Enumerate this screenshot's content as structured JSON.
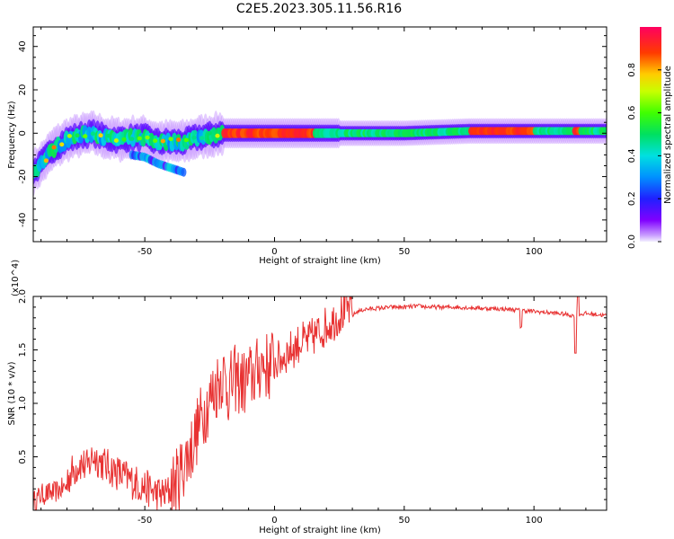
{
  "title": "C2E5.2023.305.11.56.R16",
  "chart_data": [
    {
      "type": "heatmap",
      "xlabel": "Height of straight line (km)",
      "ylabel": "Frequency (Hz)",
      "xlim": [
        -93,
        128
      ],
      "ylim": [
        -50,
        49
      ],
      "xticks": [
        -50,
        0,
        50,
        100
      ],
      "yticks": [
        -40,
        -20,
        0,
        20,
        40
      ],
      "colorbar": {
        "label": "Normalized spectral amplitude",
        "range": [
          0,
          1
        ],
        "ticks": [
          0.0,
          0.2,
          0.4,
          0.6,
          0.8
        ],
        "colormap": "rainbow"
      },
      "band_center_hz": [
        [
          -93,
          -18
        ],
        [
          -90,
          -14
        ],
        [
          -85,
          -7
        ],
        [
          -80,
          -3
        ],
        [
          -75,
          -1
        ],
        [
          -70,
          0
        ],
        [
          -65,
          -2
        ],
        [
          -60,
          -3
        ],
        [
          -55,
          -2
        ],
        [
          -50,
          -2
        ],
        [
          -45,
          -4
        ],
        [
          -40,
          -4
        ],
        [
          -35,
          -4
        ],
        [
          -30,
          -2
        ],
        [
          -25,
          -1
        ],
        [
          -20,
          0
        ],
        [
          -10,
          0
        ],
        [
          0,
          0
        ],
        [
          10,
          0
        ],
        [
          30,
          0
        ],
        [
          50,
          0
        ],
        [
          75,
          1
        ],
        [
          100,
          1
        ],
        [
          115,
          1
        ],
        [
          128,
          1
        ]
      ],
      "secondary_branch_hz": [
        [
          -55,
          -10
        ],
        [
          -50,
          -11
        ],
        [
          -45,
          -14
        ],
        [
          -40,
          -16
        ],
        [
          -35,
          -18
        ]
      ],
      "peak_amplitude_regions_km": [
        [
          -20,
          15
        ],
        [
          75,
          100
        ],
        [
          115,
          118
        ]
      ]
    },
    {
      "type": "line",
      "xlabel": "Height of straight line (km)",
      "ylabel": "SNR (10 * v/v)",
      "y_multiplier": "(x10^4)",
      "xlim": [
        -93,
        128
      ],
      "ylim": [
        0,
        2.0
      ],
      "xticks": [
        -50,
        0,
        50,
        100
      ],
      "yticks": [
        0.5,
        1.0,
        1.5,
        2.0
      ],
      "ytick_labels": [
        "0.5",
        "1.0",
        "1.5",
        "2.0"
      ],
      "series": [
        {
          "color": "#e83232",
          "x": [
            -93,
            -90,
            -85,
            -80,
            -75,
            -72,
            -70,
            -65,
            -62,
            -60,
            -55,
            -50,
            -45,
            -42,
            -40,
            -38,
            -35,
            -32,
            -30,
            -28,
            -25,
            -22,
            -20,
            -18,
            -15,
            -12,
            -10,
            -7,
            -5,
            -2,
            0,
            3,
            5,
            8,
            10,
            13,
            15,
            18,
            20,
            23,
            25,
            28,
            30,
            32,
            35,
            40,
            45,
            50,
            55,
            60,
            70,
            80,
            90,
            95,
            100,
            105,
            110,
            113,
            115,
            117,
            120,
            125,
            128
          ],
          "y": [
            0.05,
            0.12,
            0.14,
            0.2,
            0.35,
            0.3,
            0.42,
            0.32,
            0.28,
            0.25,
            0.18,
            0.12,
            0.06,
            0.05,
            0.1,
            0.12,
            0.3,
            0.45,
            0.6,
            0.75,
            0.9,
            1.05,
            1.15,
            1.0,
            1.1,
            1.05,
            1.1,
            1.15,
            1.25,
            1.2,
            1.3,
            1.35,
            1.4,
            1.45,
            1.5,
            1.5,
            1.55,
            1.6,
            1.65,
            1.7,
            1.75,
            1.8,
            1.82,
            1.86,
            1.88,
            1.89,
            1.9,
            1.9,
            1.91,
            1.9,
            1.9,
            1.89,
            1.88,
            1.87,
            1.86,
            1.85,
            1.84,
            1.83,
            1.82,
            1.83,
            1.84,
            1.83,
            1.82
          ]
        }
      ]
    }
  ]
}
